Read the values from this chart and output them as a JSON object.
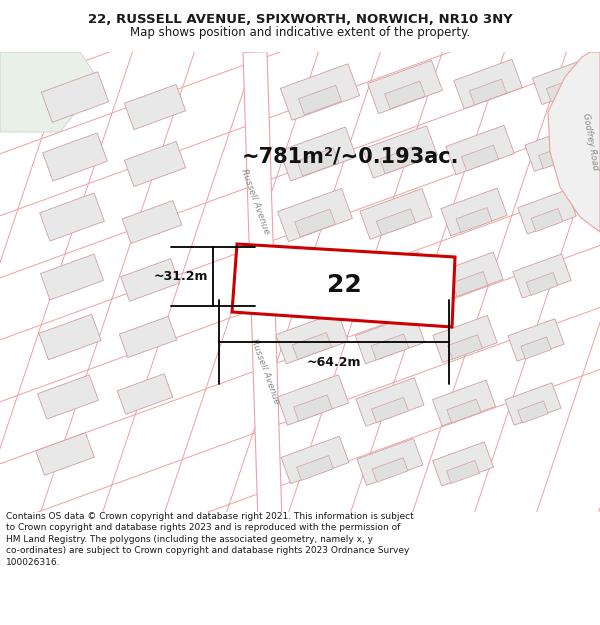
{
  "title_line1": "22, RUSSELL AVENUE, SPIXWORTH, NORWICH, NR10 3NY",
  "title_line2": "Map shows position and indicative extent of the property.",
  "footer_text": "Contains OS data © Crown copyright and database right 2021. This information is subject to Crown copyright and database rights 2023 and is reproduced with the permission of HM Land Registry. The polygons (including the associated geometry, namely x, y co-ordinates) are subject to Crown copyright and database rights 2023 Ordnance Survey 100026316.",
  "area_label": "~781m²/~0.193ac.",
  "width_label": "~64.2m",
  "height_label": "~31.2m",
  "plot_number": "22",
  "map_bg": "#ffffff",
  "road_line_color": "#f0a0a0",
  "building_fill": "#e8e8e8",
  "building_edge": "#d0a0a0",
  "plot_outline_color": "#cc0000",
  "street_label": "Russell Avenue",
  "godley_label": "Godfrey Road",
  "title_fontsize": 9.5,
  "subtitle_fontsize": 8.5,
  "area_fontsize": 15,
  "dim_fontsize": 9,
  "plot_label_fontsize": 18,
  "footer_fontsize": 6.5
}
